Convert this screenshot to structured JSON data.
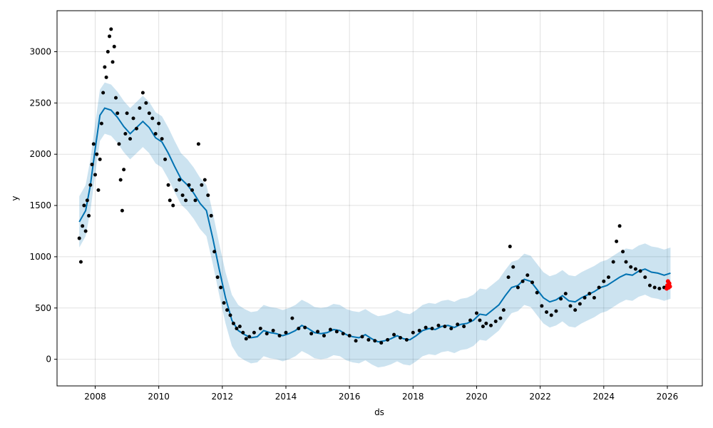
{
  "chart_data": {
    "type": "line",
    "title": "",
    "xlabel": "ds",
    "ylabel": "y",
    "xlim": [
      2006.8,
      2027.1
    ],
    "ylim": [
      -260,
      3400
    ],
    "grid": true,
    "x_ticks": [
      2008,
      2010,
      2012,
      2014,
      2016,
      2018,
      2020,
      2022,
      2024,
      2026
    ],
    "x_tick_labels": [
      "2008",
      "2010",
      "2012",
      "2014",
      "2016",
      "2018",
      "2020",
      "2022",
      "2024",
      "2026"
    ],
    "y_ticks": [
      0,
      500,
      1000,
      1500,
      2000,
      2500,
      3000
    ],
    "y_tick_labels": [
      "0",
      "500",
      "1000",
      "1500",
      "2000",
      "2500",
      "3000"
    ],
    "colors": {
      "observed": "#000000",
      "forecast_line": "#0072B2",
      "uncertainty_band": "#0072B2",
      "recent_actuals": "#ff0000"
    },
    "series": [
      {
        "role": "observed",
        "points": [
          [
            2007.5,
            1180
          ],
          [
            2007.55,
            950
          ],
          [
            2007.6,
            1300
          ],
          [
            2007.65,
            1500
          ],
          [
            2007.7,
            1250
          ],
          [
            2007.75,
            1550
          ],
          [
            2007.8,
            1400
          ],
          [
            2007.85,
            1700
          ],
          [
            2007.9,
            1900
          ],
          [
            2007.95,
            2100
          ],
          [
            2008.0,
            1800
          ],
          [
            2008.05,
            2000
          ],
          [
            2008.1,
            1650
          ],
          [
            2008.15,
            1950
          ],
          [
            2008.2,
            2300
          ],
          [
            2008.25,
            2600
          ],
          [
            2008.3,
            2850
          ],
          [
            2008.35,
            2750
          ],
          [
            2008.4,
            3000
          ],
          [
            2008.45,
            3150
          ],
          [
            2008.5,
            3220
          ],
          [
            2008.55,
            2900
          ],
          [
            2008.6,
            3050
          ],
          [
            2008.65,
            2550
          ],
          [
            2008.7,
            2400
          ],
          [
            2008.75,
            2100
          ],
          [
            2008.8,
            1750
          ],
          [
            2008.85,
            1450
          ],
          [
            2008.9,
            1850
          ],
          [
            2008.95,
            2200
          ],
          [
            2009.0,
            2400
          ],
          [
            2009.1,
            2150
          ],
          [
            2009.2,
            2350
          ],
          [
            2009.3,
            2250
          ],
          [
            2009.4,
            2450
          ],
          [
            2009.5,
            2600
          ],
          [
            2009.6,
            2500
          ],
          [
            2009.7,
            2400
          ],
          [
            2009.8,
            2350
          ],
          [
            2009.9,
            2200
          ],
          [
            2010.0,
            2300
          ],
          [
            2010.1,
            2150
          ],
          [
            2010.2,
            1950
          ],
          [
            2010.3,
            1700
          ],
          [
            2010.35,
            1550
          ],
          [
            2010.45,
            1500
          ],
          [
            2010.55,
            1650
          ],
          [
            2010.65,
            1750
          ],
          [
            2010.75,
            1600
          ],
          [
            2010.85,
            1550
          ],
          [
            2010.95,
            1700
          ],
          [
            2011.05,
            1650
          ],
          [
            2011.15,
            1550
          ],
          [
            2011.25,
            2100
          ],
          [
            2011.35,
            1700
          ],
          [
            2011.45,
            1750
          ],
          [
            2011.55,
            1600
          ],
          [
            2011.65,
            1400
          ],
          [
            2011.75,
            1050
          ],
          [
            2011.85,
            800
          ],
          [
            2011.95,
            700
          ],
          [
            2012.05,
            550
          ],
          [
            2012.15,
            480
          ],
          [
            2012.25,
            430
          ],
          [
            2012.35,
            350
          ],
          [
            2012.45,
            300
          ],
          [
            2012.55,
            320
          ],
          [
            2012.65,
            260
          ],
          [
            2012.75,
            200
          ],
          [
            2012.85,
            220
          ],
          [
            2013.0,
            260
          ],
          [
            2013.2,
            300
          ],
          [
            2013.4,
            250
          ],
          [
            2013.6,
            280
          ],
          [
            2013.8,
            230
          ],
          [
            2014.0,
            260
          ],
          [
            2014.2,
            400
          ],
          [
            2014.4,
            300
          ],
          [
            2014.6,
            310
          ],
          [
            2014.8,
            250
          ],
          [
            2015.0,
            270
          ],
          [
            2015.2,
            230
          ],
          [
            2015.4,
            290
          ],
          [
            2015.6,
            270
          ],
          [
            2015.8,
            250
          ],
          [
            2016.0,
            230
          ],
          [
            2016.2,
            180
          ],
          [
            2016.4,
            220
          ],
          [
            2016.6,
            190
          ],
          [
            2016.8,
            180
          ],
          [
            2017.0,
            160
          ],
          [
            2017.2,
            190
          ],
          [
            2017.4,
            240
          ],
          [
            2017.6,
            210
          ],
          [
            2017.8,
            190
          ],
          [
            2018.0,
            260
          ],
          [
            2018.2,
            280
          ],
          [
            2018.4,
            310
          ],
          [
            2018.6,
            300
          ],
          [
            2018.8,
            330
          ],
          [
            2019.0,
            320
          ],
          [
            2019.2,
            300
          ],
          [
            2019.4,
            340
          ],
          [
            2019.6,
            320
          ],
          [
            2019.8,
            380
          ],
          [
            2020.0,
            450
          ],
          [
            2020.1,
            380
          ],
          [
            2020.2,
            320
          ],
          [
            2020.3,
            350
          ],
          [
            2020.45,
            330
          ],
          [
            2020.6,
            370
          ],
          [
            2020.75,
            400
          ],
          [
            2020.85,
            480
          ],
          [
            2021.0,
            800
          ],
          [
            2021.05,
            1100
          ],
          [
            2021.15,
            900
          ],
          [
            2021.3,
            700
          ],
          [
            2021.45,
            760
          ],
          [
            2021.6,
            820
          ],
          [
            2021.75,
            750
          ],
          [
            2021.9,
            650
          ],
          [
            2022.05,
            520
          ],
          [
            2022.2,
            460
          ],
          [
            2022.35,
            430
          ],
          [
            2022.5,
            470
          ],
          [
            2022.65,
            590
          ],
          [
            2022.8,
            640
          ],
          [
            2022.95,
            520
          ],
          [
            2023.1,
            480
          ],
          [
            2023.25,
            540
          ],
          [
            2023.4,
            600
          ],
          [
            2023.55,
            640
          ],
          [
            2023.7,
            600
          ],
          [
            2023.85,
            700
          ],
          [
            2024.0,
            760
          ],
          [
            2024.15,
            800
          ],
          [
            2024.3,
            950
          ],
          [
            2024.4,
            1150
          ],
          [
            2024.5,
            1300
          ],
          [
            2024.6,
            1050
          ],
          [
            2024.7,
            950
          ],
          [
            2024.85,
            900
          ],
          [
            2025.0,
            880
          ],
          [
            2025.15,
            860
          ],
          [
            2025.3,
            800
          ],
          [
            2025.45,
            720
          ],
          [
            2025.6,
            700
          ],
          [
            2025.75,
            690
          ],
          [
            2025.9,
            700
          ],
          [
            2026.0,
            720
          ]
        ]
      },
      {
        "role": "forecast",
        "points": [
          [
            2007.5,
            1340
          ],
          [
            2007.7,
            1450
          ],
          [
            2007.85,
            1700
          ],
          [
            2008.0,
            2050
          ],
          [
            2008.15,
            2380
          ],
          [
            2008.3,
            2450
          ],
          [
            2008.5,
            2430
          ],
          [
            2008.7,
            2360
          ],
          [
            2008.9,
            2270
          ],
          [
            2009.1,
            2200
          ],
          [
            2009.3,
            2260
          ],
          [
            2009.5,
            2320
          ],
          [
            2009.7,
            2260
          ],
          [
            2009.9,
            2160
          ],
          [
            2010.1,
            2120
          ],
          [
            2010.3,
            2010
          ],
          [
            2010.5,
            1880
          ],
          [
            2010.7,
            1760
          ],
          [
            2010.9,
            1700
          ],
          [
            2011.1,
            1620
          ],
          [
            2011.3,
            1520
          ],
          [
            2011.5,
            1450
          ],
          [
            2011.7,
            1180
          ],
          [
            2011.9,
            880
          ],
          [
            2012.1,
            600
          ],
          [
            2012.3,
            380
          ],
          [
            2012.5,
            280
          ],
          [
            2012.7,
            240
          ],
          [
            2012.9,
            210
          ],
          [
            2013.1,
            220
          ],
          [
            2013.3,
            280
          ],
          [
            2013.5,
            260
          ],
          [
            2013.7,
            250
          ],
          [
            2013.9,
            230
          ],
          [
            2014.1,
            250
          ],
          [
            2014.3,
            280
          ],
          [
            2014.5,
            330
          ],
          [
            2014.7,
            300
          ],
          [
            2014.9,
            260
          ],
          [
            2015.1,
            250
          ],
          [
            2015.3,
            260
          ],
          [
            2015.5,
            290
          ],
          [
            2015.7,
            280
          ],
          [
            2015.9,
            240
          ],
          [
            2016.1,
            220
          ],
          [
            2016.3,
            210
          ],
          [
            2016.5,
            240
          ],
          [
            2016.7,
            200
          ],
          [
            2016.9,
            170
          ],
          [
            2017.1,
            180
          ],
          [
            2017.3,
            200
          ],
          [
            2017.5,
            230
          ],
          [
            2017.7,
            200
          ],
          [
            2017.9,
            190
          ],
          [
            2018.1,
            230
          ],
          [
            2018.3,
            280
          ],
          [
            2018.5,
            300
          ],
          [
            2018.7,
            290
          ],
          [
            2018.9,
            320
          ],
          [
            2019.1,
            330
          ],
          [
            2019.3,
            310
          ],
          [
            2019.5,
            340
          ],
          [
            2019.7,
            350
          ],
          [
            2019.9,
            380
          ],
          [
            2020.1,
            440
          ],
          [
            2020.3,
            430
          ],
          [
            2020.5,
            480
          ],
          [
            2020.7,
            530
          ],
          [
            2020.9,
            620
          ],
          [
            2021.1,
            700
          ],
          [
            2021.3,
            720
          ],
          [
            2021.5,
            780
          ],
          [
            2021.7,
            760
          ],
          [
            2021.9,
            680
          ],
          [
            2022.1,
            600
          ],
          [
            2022.3,
            560
          ],
          [
            2022.5,
            580
          ],
          [
            2022.7,
            620
          ],
          [
            2022.9,
            570
          ],
          [
            2023.1,
            560
          ],
          [
            2023.3,
            600
          ],
          [
            2023.5,
            630
          ],
          [
            2023.7,
            660
          ],
          [
            2023.9,
            700
          ],
          [
            2024.1,
            720
          ],
          [
            2024.3,
            760
          ],
          [
            2024.5,
            800
          ],
          [
            2024.7,
            830
          ],
          [
            2024.9,
            820
          ],
          [
            2025.1,
            860
          ],
          [
            2025.3,
            880
          ],
          [
            2025.5,
            850
          ],
          [
            2025.7,
            840
          ],
          [
            2025.9,
            820
          ],
          [
            2026.1,
            840
          ]
        ]
      },
      {
        "role": "recent_actuals",
        "points": [
          [
            2025.98,
            690
          ],
          [
            2026.0,
            720
          ],
          [
            2026.02,
            760
          ],
          [
            2026.04,
            700
          ],
          [
            2026.06,
            740
          ],
          [
            2026.08,
            710
          ]
        ]
      }
    ],
    "uncertainty_band_halfwidth": 250
  }
}
